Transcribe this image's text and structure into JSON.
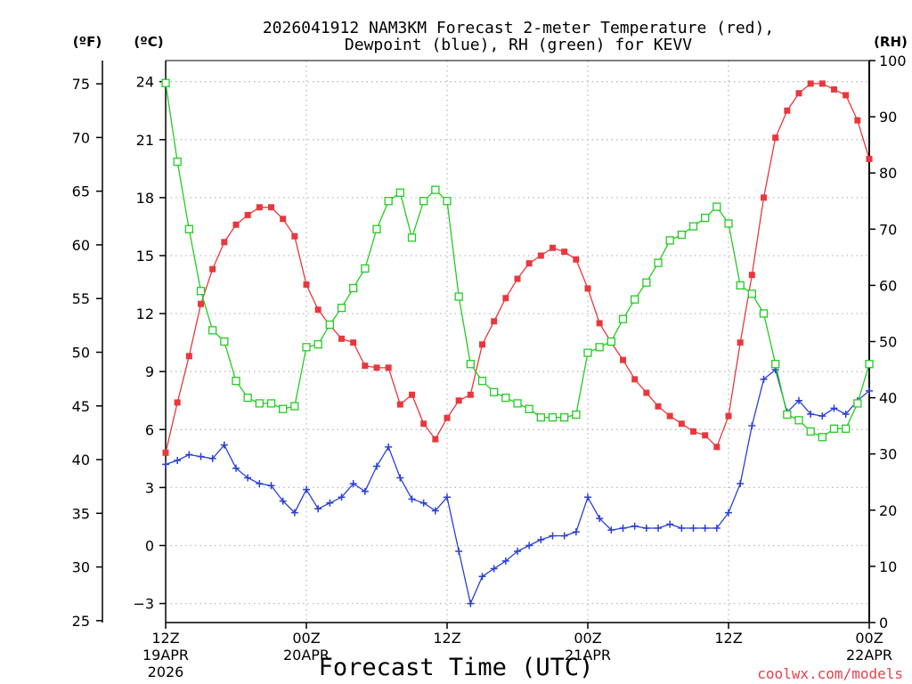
{
  "title": {
    "line1": "2026041912 NAM3KM Forecast 2-meter Temperature (red),",
    "line2": "Dewpoint (blue), RH (green) for KEVV"
  },
  "units": {
    "fahrenheit": "(ºF)",
    "celsius": "(ºC)",
    "rh": "(RH)"
  },
  "xlabel": "Forecast Time (UTC)",
  "credit": "coolwx.com/models",
  "colors": {
    "temperature": "#e8383d",
    "dewpoint": "#2a3fd6",
    "rh": "#22cc22",
    "grid": "#bbbbbb"
  },
  "chart_data": {
    "type": "line",
    "title": "2026041912 NAM3KM Forecast 2-meter Temperature (red), Dewpoint (blue), RH (green) for KEVV",
    "xlabel": "Forecast Time (UTC)",
    "x_range_hours": [
      0,
      60
    ],
    "x_ticks": [
      {
        "hour": 0,
        "lines": [
          "12Z",
          "19APR",
          "2026"
        ]
      },
      {
        "hour": 12,
        "lines": [
          "00Z",
          "20APR"
        ]
      },
      {
        "hour": 24,
        "lines": [
          "12Z"
        ]
      },
      {
        "hour": 36,
        "lines": [
          "00Z",
          "21APR"
        ]
      },
      {
        "hour": 48,
        "lines": [
          "12Z"
        ]
      },
      {
        "hour": 60,
        "lines": [
          "00Z",
          "22APR"
        ]
      }
    ],
    "y_left_celsius": {
      "range": [
        -4,
        25
      ],
      "ticks": [
        -3,
        0,
        3,
        6,
        9,
        12,
        15,
        18,
        21,
        24
      ]
    },
    "y_left_fahrenheit": {
      "ticks": [
        25,
        30,
        35,
        40,
        45,
        50,
        55,
        60,
        65,
        70,
        75
      ]
    },
    "y_right_rh": {
      "range": [
        0,
        100
      ],
      "ticks": [
        0,
        10,
        20,
        30,
        40,
        50,
        60,
        70,
        80,
        90,
        100
      ]
    },
    "hours": [
      0,
      1,
      2,
      3,
      4,
      5,
      6,
      7,
      8,
      9,
      10,
      11,
      12,
      13,
      14,
      15,
      16,
      17,
      18,
      19,
      20,
      21,
      22,
      23,
      24,
      25,
      26,
      27,
      28,
      29,
      30,
      31,
      32,
      33,
      34,
      35,
      36,
      37,
      38,
      39,
      40,
      41,
      42,
      43,
      44,
      45,
      46,
      47,
      48,
      49,
      50,
      51,
      52,
      53,
      54,
      55,
      56,
      57,
      58,
      59,
      60
    ],
    "series": [
      {
        "name": "2-meter Temperature",
        "unit": "°C",
        "color": "#e8383d",
        "marker": "filled-square",
        "axis": "celsius",
        "values": [
          4.8,
          7.4,
          9.8,
          12.5,
          14.3,
          15.7,
          16.6,
          17.1,
          17.5,
          17.5,
          16.9,
          16.0,
          13.5,
          12.2,
          11.4,
          10.7,
          10.5,
          9.3,
          9.2,
          9.2,
          7.3,
          7.8,
          6.3,
          5.5,
          6.6,
          7.5,
          7.8,
          10.4,
          11.6,
          12.8,
          13.8,
          14.6,
          15.0,
          15.4,
          15.2,
          14.8,
          13.3,
          11.5,
          10.5,
          9.6,
          8.6,
          7.9,
          7.2,
          6.7,
          6.3,
          5.9,
          5.7,
          5.1,
          6.7,
          10.5,
          14.0,
          18.0,
          21.1,
          22.5,
          23.4,
          23.9,
          23.9,
          23.6,
          23.3,
          22.0,
          20.0
        ]
      },
      {
        "name": "Dewpoint",
        "unit": "°C",
        "color": "#2a3fd6",
        "marker": "plus",
        "axis": "celsius",
        "values": [
          4.2,
          4.4,
          4.7,
          4.6,
          4.5,
          5.2,
          4.0,
          3.5,
          3.2,
          3.1,
          2.3,
          1.7,
          2.9,
          1.9,
          2.2,
          2.5,
          3.2,
          2.8,
          4.1,
          5.1,
          3.5,
          2.4,
          2.2,
          1.8,
          2.5,
          -0.3,
          -3.0,
          -1.6,
          -1.2,
          -0.8,
          -0.3,
          0.0,
          0.3,
          0.5,
          0.5,
          0.7,
          2.5,
          1.4,
          0.8,
          0.9,
          1.0,
          0.9,
          0.9,
          1.1,
          0.9,
          0.9,
          0.9,
          0.9,
          1.7,
          3.2,
          6.2,
          8.6,
          9.1,
          6.9,
          7.5,
          6.8,
          6.7,
          7.1,
          6.8,
          7.5,
          8.0
        ]
      },
      {
        "name": "Relative Humidity",
        "unit": "%",
        "color": "#22cc22",
        "marker": "open-square",
        "axis": "rh",
        "values": [
          96,
          82,
          70,
          59,
          52,
          50,
          43,
          40,
          39,
          39,
          38,
          38.5,
          49,
          49.5,
          53,
          56,
          59.5,
          63,
          70,
          75,
          76.5,
          68.5,
          75,
          77,
          75,
          58,
          46,
          43,
          41,
          40,
          39,
          38,
          36.5,
          36.5,
          36.5,
          37,
          48,
          49,
          50,
          54,
          57.5,
          60.5,
          64,
          68,
          69,
          70.5,
          72,
          74,
          71,
          60,
          58.5,
          55,
          46,
          37,
          36,
          34,
          33,
          34.5,
          34.5,
          39,
          46
        ]
      }
    ]
  }
}
